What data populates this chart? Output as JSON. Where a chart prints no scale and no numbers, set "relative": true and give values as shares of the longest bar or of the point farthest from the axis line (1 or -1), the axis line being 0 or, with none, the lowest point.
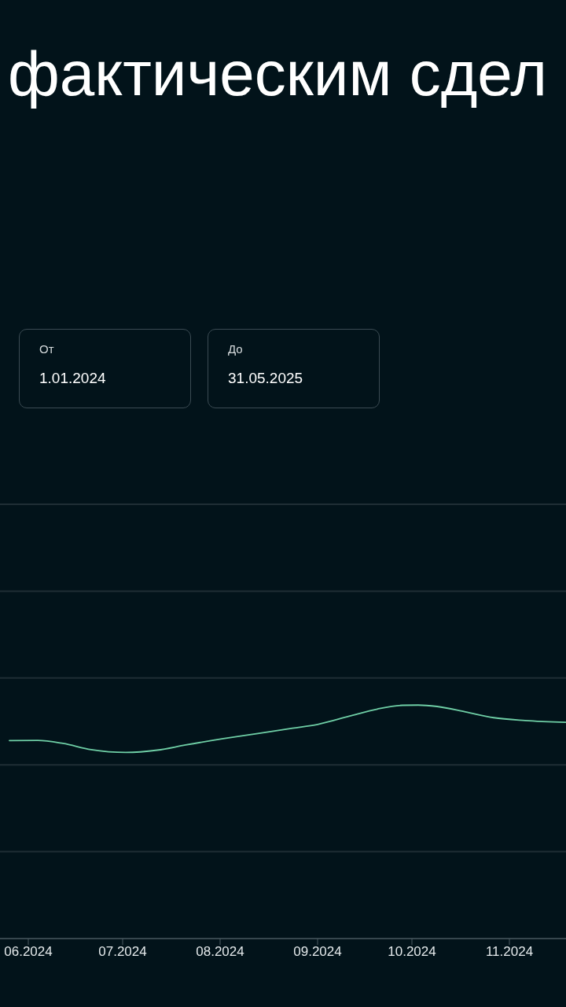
{
  "chart_data": {
    "type": "line",
    "title": "фактическим сдел",
    "annotations": [
      "От",
      "1.01.2024",
      "До",
      "31.05.2025"
    ],
    "x": [
      "2024-05-26",
      "2024-06-04",
      "2024-06-12",
      "2024-06-21",
      "2024-07-02",
      "2024-07-12",
      "2024-07-21",
      "2024-08-02",
      "2024-08-13",
      "2024-08-24",
      "2024-09-01",
      "2024-09-11",
      "2024-09-20",
      "2024-09-28",
      "2024-10-03",
      "2024-10-09",
      "2024-10-18",
      "2024-10-27",
      "2024-11-06",
      "2024-11-19"
    ],
    "values": [
      0.848,
      0.849,
      0.836,
      0.809,
      0.797,
      0.807,
      0.829,
      0.856,
      0.878,
      0.901,
      0.917,
      0.952,
      0.983,
      0.999,
      1,
      0.994,
      0.971,
      0.946,
      0.934,
      0.926
    ],
    "color": "#6fcfa6",
    "relative": true,
    "xlim": [
      "2024-05-23",
      "2024-11-19"
    ],
    "xticks": [
      {
        "value": "2024-06",
        "label": "06.2024"
      },
      {
        "value": "2024-07",
        "label": "07.2024"
      },
      {
        "value": "2024-08",
        "label": "08.2024"
      },
      {
        "value": "2024-09",
        "label": "09.2024"
      },
      {
        "value": "2024-10",
        "label": "10.2024"
      },
      {
        "value": "2024-11",
        "label": "11.2024"
      }
    ],
    "ref_lines": [
      {
        "axis": "y",
        "value": 0.372,
        "color": "#1f2e35"
      },
      {
        "axis": "y",
        "value": 0.744,
        "color": "#1f2e35"
      },
      {
        "axis": "y",
        "value": 1.116,
        "color": "#1f2e35"
      },
      {
        "axis": "y",
        "value": 1.488,
        "color": "#1f2e35"
      },
      {
        "axis": "y",
        "value": 1.86,
        "color": "#1f2e35"
      }
    ]
  }
}
